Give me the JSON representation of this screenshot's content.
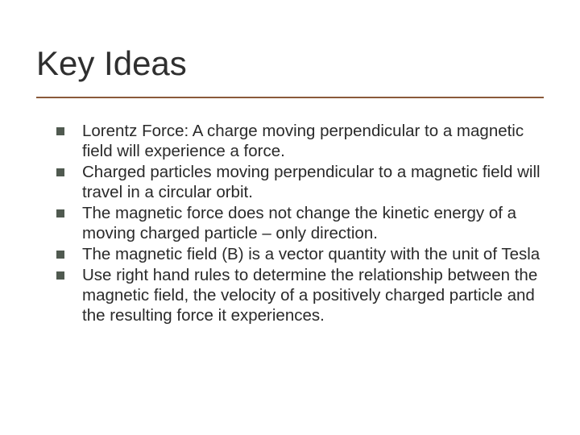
{
  "slide": {
    "title": "Key Ideas",
    "title_fontsize": 42,
    "title_color": "#2f2f2f",
    "rule_color": "#8a5a3a",
    "rule_width": 2,
    "background_color": "#ffffff",
    "body_fontsize": 20.5,
    "body_color": "#2a2a2a",
    "bullet_color": "#505a50",
    "bullet_size": 10,
    "items": [
      "Lorentz Force: A charge moving perpendicular to a magnetic field will experience a force.",
      "Charged particles moving perpendicular to a magnetic field will travel in a circular orbit.",
      "The magnetic force does not change the kinetic energy of a moving charged particle – only direction.",
      "The magnetic field (B) is a vector quantity with the unit of Tesla",
      "Use right hand rules to determine the relationship between the magnetic field, the velocity of a positively charged particle and the resulting force it experiences."
    ]
  }
}
